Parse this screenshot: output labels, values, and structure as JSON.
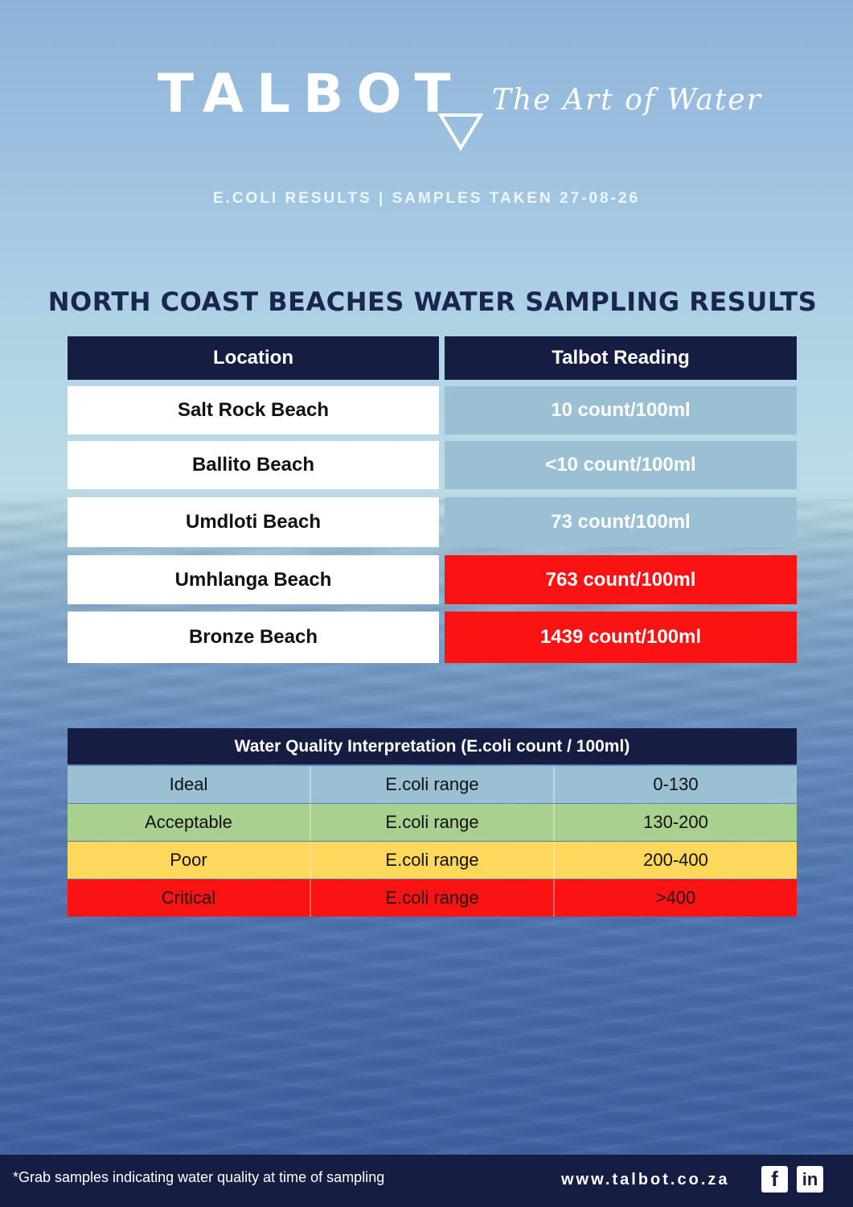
{
  "brand": {
    "name": "TALBOT",
    "tagline": "The Art of Water"
  },
  "subheading": "E.COLI RESULTS | SAMPLES TAKEN 27-08-26",
  "title": "NORTH COAST BEACHES WATER SAMPLING RESULTS",
  "results_table": {
    "headers": [
      "Location",
      "Talbot Reading"
    ],
    "rows": [
      {
        "location": "Salt Rock Beach",
        "reading": "10  count/100ml",
        "status_color": "#9bbfd3"
      },
      {
        "location": "Ballito Beach",
        "reading": "<10  count/100ml",
        "status_color": "#9bbfd3"
      },
      {
        "location": "Umdloti Beach",
        "reading": "73 count/100ml",
        "status_color": "#9bbfd3"
      },
      {
        "location": "Umhlanga Beach",
        "reading": "763  count/100ml",
        "status_color": "#fb1212"
      },
      {
        "location": "Bronze Beach",
        "reading": "1439  count/100ml",
        "status_color": "#fb1212"
      }
    ]
  },
  "interpretation": {
    "title": "Water Quality Interpretation (E.coli count / 100ml)",
    "rows": [
      {
        "level": "Ideal",
        "label": "E.coli  range",
        "range": "0-130",
        "color": "#9bbfd3"
      },
      {
        "level": "Acceptable",
        "label": "E.coli  range",
        "range": "130-200",
        "color": "#a9d08e"
      },
      {
        "level": "Poor",
        "label": "E.coli  range",
        "range": "200-400",
        "color": "#fdd85d"
      },
      {
        "level": "Critical",
        "label": "E.coli  range",
        "range": ">400",
        "color": "#fb1212"
      }
    ]
  },
  "footer": {
    "footnote": "*Grab samples indicating water quality at time of sampling",
    "website": "www.talbot.co.za",
    "social": [
      {
        "icon": "facebook-icon",
        "glyph": "f"
      },
      {
        "icon": "linkedin-icon",
        "glyph": "in"
      }
    ]
  }
}
